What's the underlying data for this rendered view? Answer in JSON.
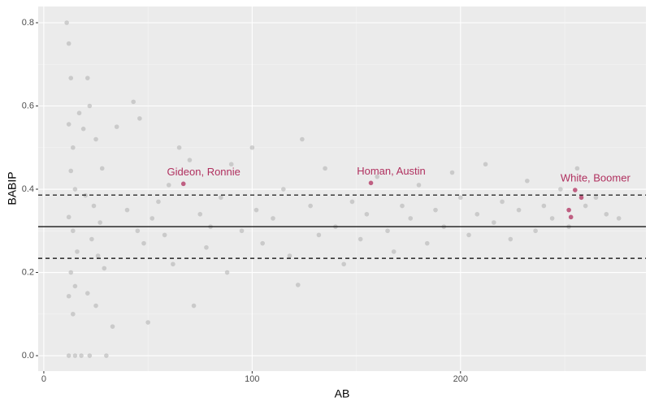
{
  "chart_data": {
    "type": "scatter",
    "x_label": "AB",
    "y_label": "BABIP",
    "xlim": [
      -2.7,
      289
    ],
    "ylim": [
      -0.037,
      0.839
    ],
    "xticks": [
      0,
      100,
      200
    ],
    "yticks": [
      {
        "value": 0,
        "label": "0.0"
      },
      {
        "value": 0.2,
        "label": "0.2"
      },
      {
        "value": 0.4,
        "label": "0.4"
      },
      {
        "value": 0.6,
        "label": "0.6"
      },
      {
        "value": 0.8,
        "label": "0.8"
      }
    ],
    "x_minor_ticks": [
      50,
      150,
      250
    ],
    "y_minor_ticks": [
      0.1,
      0.3,
      0.5,
      0.7
    ],
    "grid": true,
    "hlines": [
      {
        "y": 0.31,
        "style": "solid"
      },
      {
        "y": 0.386,
        "style": "dashed"
      },
      {
        "y": 0.234,
        "style": "dashed"
      }
    ],
    "series": [
      {
        "color": "#aaaaaa",
        "x": [
          11,
          12,
          13,
          12,
          14,
          13,
          15,
          12,
          14,
          16,
          13,
          15,
          12,
          14,
          12,
          15,
          18,
          22,
          30,
          17,
          19,
          21,
          22,
          25,
          28,
          20,
          24,
          27,
          23,
          26,
          29,
          21,
          25,
          33,
          43,
          46,
          35,
          50,
          40,
          45,
          48,
          52,
          55,
          58,
          60,
          62,
          65,
          70,
          72,
          75,
          78,
          80,
          85,
          88,
          90,
          95,
          100,
          102,
          105,
          110,
          115,
          118,
          122,
          124,
          128,
          132,
          135,
          140,
          144,
          148,
          152,
          155,
          160,
          165,
          168,
          172,
          176,
          180,
          184,
          188,
          192,
          196,
          200,
          204,
          208,
          212,
          216,
          220,
          224,
          228,
          232,
          236,
          240,
          244,
          248,
          252,
          256,
          260,
          265,
          270,
          276
        ],
        "y": [
          0.8,
          0.75,
          0.667,
          0.556,
          0.5,
          0.444,
          0.4,
          0.333,
          0.3,
          0.25,
          0.2,
          0.167,
          0.143,
          0.1,
          0,
          0,
          0,
          0,
          0,
          0.583,
          0.545,
          0.667,
          0.6,
          0.52,
          0.45,
          0.385,
          0.36,
          0.32,
          0.28,
          0.24,
          0.21,
          0.15,
          0.12,
          0.07,
          0.61,
          0.57,
          0.55,
          0.08,
          0.35,
          0.3,
          0.27,
          0.33,
          0.37,
          0.29,
          0.41,
          0.22,
          0.5,
          0.47,
          0.12,
          0.34,
          0.26,
          0.31,
          0.38,
          0.2,
          0.46,
          0.3,
          0.5,
          0.35,
          0.27,
          0.33,
          0.4,
          0.24,
          0.17,
          0.52,
          0.36,
          0.29,
          0.45,
          0.31,
          0.22,
          0.37,
          0.28,
          0.34,
          0.43,
          0.3,
          0.25,
          0.36,
          0.33,
          0.41,
          0.27,
          0.35,
          0.31,
          0.44,
          0.38,
          0.29,
          0.34,
          0.46,
          0.32,
          0.37,
          0.28,
          0.35,
          0.42,
          0.3,
          0.36,
          0.33,
          0.4,
          0.31,
          0.45,
          0.36,
          0.38,
          0.34,
          0.33
        ]
      },
      {
        "color": "#b0305f",
        "x": [
          67,
          157,
          255,
          252,
          253,
          258
        ],
        "y": [
          0.413,
          0.415,
          0.398,
          0.35,
          0.333,
          0.38
        ],
        "labels": [
          "Gideon, Ronnie",
          "Homan, Austin",
          "White, Boomer",
          null,
          null,
          null
        ]
      }
    ]
  }
}
